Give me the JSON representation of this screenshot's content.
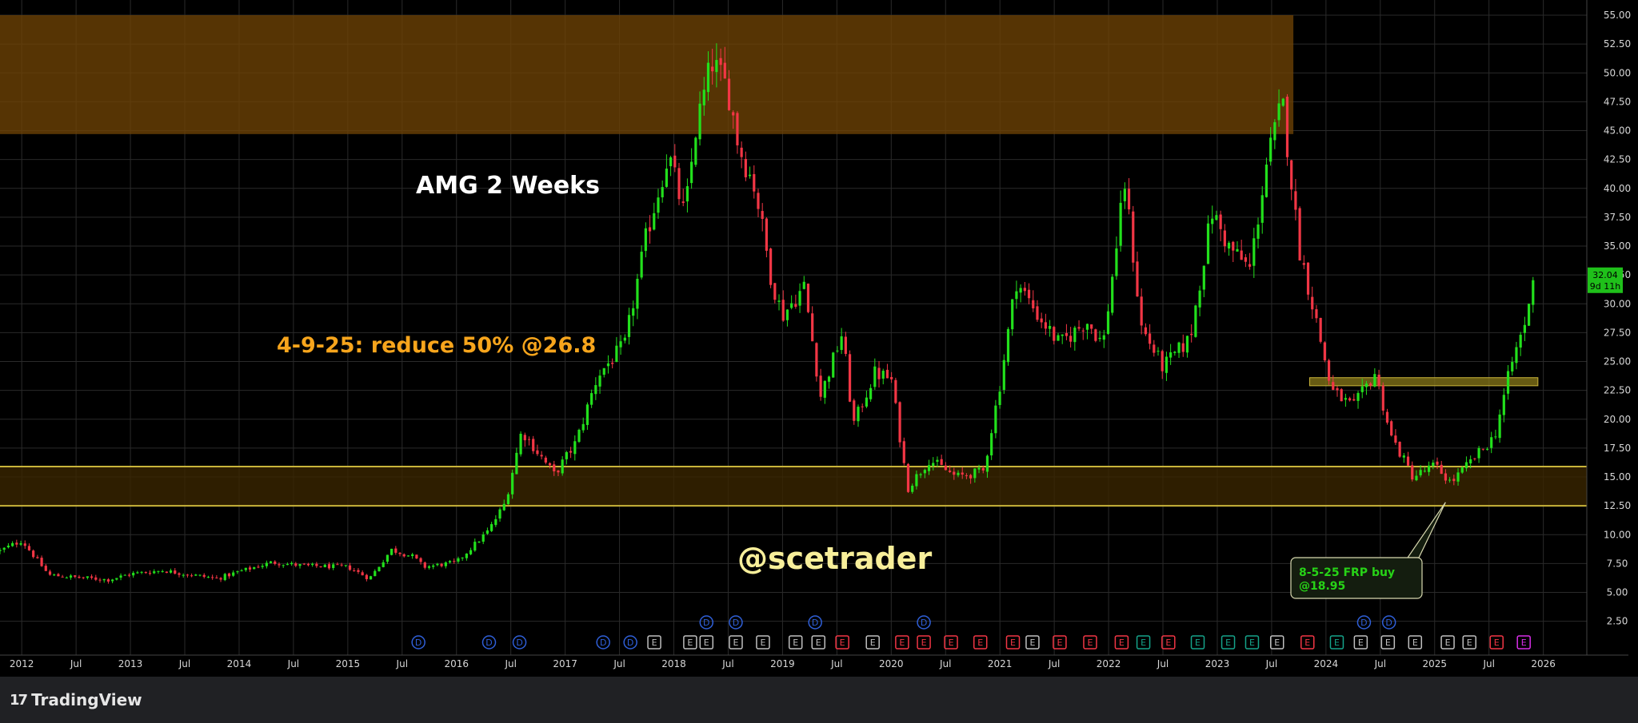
{
  "colors": {
    "background": "#000000",
    "grid": "#2a2a2a",
    "up": "#22e01c",
    "down": "#f23645",
    "resistance_zone": "#6e4305",
    "support_zone_fill": "#3a2500",
    "support_line": "#c9b43a",
    "mid_zone": "#8a7a1a",
    "title_text": "#ffffff",
    "note_text": "#f7a51c",
    "watermark_text": "#f8ef9a",
    "callout_text": "#27d317",
    "price_label_bg": "#1fc01a",
    "axis_text": "#d7d7d7",
    "dividend_badge": "#2f5fd8",
    "earnings_badge_neutral": "#bfbfbf",
    "earnings_badge_miss": "#f23645",
    "earnings_badge_beat": "#15a38a",
    "earnings_badge_upcoming": "#d82ee8"
  },
  "annotations": {
    "title": "AMG 2 Weeks",
    "note": "4-9-25: reduce 50% @26.8",
    "watermark": "@scetrader",
    "callout_line1": "8-5-25 FRP buy",
    "callout_line2": "@18.95"
  },
  "price_label": {
    "price": "32.04",
    "countdown": "9d 11h"
  },
  "branding": {
    "logo_mark": "17",
    "logo_text": "TradingView"
  },
  "chart_data": {
    "type": "candlestick",
    "symbol": "AMG",
    "interval": "2 Weeks",
    "xlim": [
      2011.8,
      2026.4
    ],
    "ylim": [
      0,
      56
    ],
    "y_ticks": [
      "2.50",
      "5.00",
      "7.50",
      "10.00",
      "12.50",
      "15.00",
      "17.50",
      "20.00",
      "22.50",
      "25.00",
      "27.50",
      "30.00",
      "32.50",
      "35.00",
      "37.50",
      "40.00",
      "42.50",
      "45.00",
      "47.50",
      "50.00",
      "52.50",
      "55.00"
    ],
    "x_ticks": [
      {
        "t": 2012.0,
        "label": "2012"
      },
      {
        "t": 2012.5,
        "label": "Jul"
      },
      {
        "t": 2013.0,
        "label": "2013"
      },
      {
        "t": 2013.5,
        "label": "Jul"
      },
      {
        "t": 2014.0,
        "label": "2014"
      },
      {
        "t": 2014.5,
        "label": "Jul"
      },
      {
        "t": 2015.0,
        "label": "2015"
      },
      {
        "t": 2015.5,
        "label": "Jul"
      },
      {
        "t": 2016.0,
        "label": "2016"
      },
      {
        "t": 2016.5,
        "label": "Jul"
      },
      {
        "t": 2017.0,
        "label": "2017"
      },
      {
        "t": 2017.5,
        "label": "Jul"
      },
      {
        "t": 2018.0,
        "label": "2018"
      },
      {
        "t": 2018.5,
        "label": "Jul"
      },
      {
        "t": 2019.0,
        "label": "2019"
      },
      {
        "t": 2019.5,
        "label": "Jul"
      },
      {
        "t": 2020.0,
        "label": "2020"
      },
      {
        "t": 2020.5,
        "label": "Jul"
      },
      {
        "t": 2021.0,
        "label": "2021"
      },
      {
        "t": 2021.5,
        "label": "Jul"
      },
      {
        "t": 2022.0,
        "label": "2022"
      },
      {
        "t": 2022.5,
        "label": "Jul"
      },
      {
        "t": 2023.0,
        "label": "2023"
      },
      {
        "t": 2023.5,
        "label": "Jul"
      },
      {
        "t": 2024.0,
        "label": "2024"
      },
      {
        "t": 2024.5,
        "label": "Jul"
      },
      {
        "t": 2025.0,
        "label": "2025"
      },
      {
        "t": 2025.5,
        "label": "Jul"
      },
      {
        "t": 2026.0,
        "label": "2026"
      }
    ],
    "price_path": [
      [
        2011.8,
        8.6
      ],
      [
        2012.0,
        9.5
      ],
      [
        2012.25,
        6.5
      ],
      [
        2012.5,
        6.3
      ],
      [
        2012.8,
        6.1
      ],
      [
        2013.0,
        6.6
      ],
      [
        2013.3,
        6.9
      ],
      [
        2013.5,
        6.6
      ],
      [
        2013.8,
        6.2
      ],
      [
        2014.0,
        6.8
      ],
      [
        2014.3,
        7.6
      ],
      [
        2014.6,
        7.3
      ],
      [
        2015.0,
        7.2
      ],
      [
        2015.2,
        6.2
      ],
      [
        2015.4,
        8.7
      ],
      [
        2015.6,
        8.1
      ],
      [
        2015.7,
        7.2
      ],
      [
        2016.0,
        7.6
      ],
      [
        2016.3,
        10.4
      ],
      [
        2016.45,
        12.8
      ],
      [
        2016.6,
        19.0
      ],
      [
        2016.9,
        15.2
      ],
      [
        2017.1,
        18.0
      ],
      [
        2017.3,
        23.8
      ],
      [
        2017.55,
        26.5
      ],
      [
        2017.75,
        36.0
      ],
      [
        2017.95,
        43.0
      ],
      [
        2018.1,
        37.5
      ],
      [
        2018.2,
        45.0
      ],
      [
        2018.35,
        51.0
      ],
      [
        2018.5,
        48.5
      ],
      [
        2018.6,
        43.5
      ],
      [
        2018.75,
        40.0
      ],
      [
        2018.9,
        32.0
      ],
      [
        2019.0,
        29.0
      ],
      [
        2019.2,
        31.5
      ],
      [
        2019.35,
        22.0
      ],
      [
        2019.55,
        27.5
      ],
      [
        2019.65,
        19.5
      ],
      [
        2019.85,
        24.0
      ],
      [
        2020.0,
        23.5
      ],
      [
        2020.15,
        14.0
      ],
      [
        2020.35,
        16.5
      ],
      [
        2020.6,
        15.0
      ],
      [
        2020.85,
        15.5
      ],
      [
        2021.0,
        23.0
      ],
      [
        2021.15,
        32.0
      ],
      [
        2021.35,
        29.0
      ],
      [
        2021.55,
        26.5
      ],
      [
        2021.8,
        28.5
      ],
      [
        2021.95,
        26.5
      ],
      [
        2022.15,
        40.5
      ],
      [
        2022.3,
        28.0
      ],
      [
        2022.5,
        24.5
      ],
      [
        2022.75,
        27.0
      ],
      [
        2022.95,
        38.0
      ],
      [
        2023.1,
        35.0
      ],
      [
        2023.3,
        33.0
      ],
      [
        2023.45,
        42.0
      ],
      [
        2023.6,
        47.5
      ],
      [
        2023.75,
        35.0
      ],
      [
        2023.9,
        29.0
      ],
      [
        2024.05,
        22.5
      ],
      [
        2024.25,
        21.0
      ],
      [
        2024.45,
        24.0
      ],
      [
        2024.6,
        18.5
      ],
      [
        2024.8,
        15.0
      ],
      [
        2025.0,
        16.0
      ],
      [
        2025.15,
        14.5
      ],
      [
        2025.3,
        16.0
      ],
      [
        2025.45,
        17.5
      ],
      [
        2025.55,
        18.5
      ],
      [
        2025.7,
        24.5
      ],
      [
        2025.85,
        29.0
      ],
      [
        2025.93,
        32.04
      ]
    ],
    "last_price": 32.04,
    "zones": [
      {
        "name": "resistance",
        "from_t": 2011.8,
        "to_t": 2023.7,
        "low": 44.7,
        "high": 55.0
      },
      {
        "name": "support",
        "from_t": 2011.8,
        "to_t": 2026.4,
        "low": 12.5,
        "high": 15.9
      },
      {
        "name": "pivot",
        "from_t": 2023.85,
        "to_t": 2025.95,
        "low": 22.9,
        "high": 23.6
      }
    ],
    "callout_target": {
      "t": 2025.1,
      "price": 12.8
    },
    "event_badges": [
      {
        "t": 2015.65,
        "kind": "D",
        "row": 1
      },
      {
        "t": 2016.3,
        "kind": "D",
        "row": 1
      },
      {
        "t": 2016.58,
        "kind": "D",
        "row": 1
      },
      {
        "t": 2017.35,
        "kind": "D",
        "row": 1
      },
      {
        "t": 2017.6,
        "kind": "D",
        "row": 1
      },
      {
        "t": 2017.82,
        "kind": "E",
        "row": 1
      },
      {
        "t": 2018.15,
        "kind": "E",
        "row": 1
      },
      {
        "t": 2018.3,
        "kind": "E",
        "row": 1
      },
      {
        "t": 2018.57,
        "kind": "E",
        "row": 1
      },
      {
        "t": 2018.82,
        "kind": "E",
        "row": 1
      },
      {
        "t": 2019.12,
        "kind": "E",
        "row": 1
      },
      {
        "t": 2019.33,
        "kind": "E",
        "row": 1
      },
      {
        "t": 2019.55,
        "kind": "Em",
        "row": 1
      },
      {
        "t": 2019.83,
        "kind": "E",
        "row": 1
      },
      {
        "t": 2020.1,
        "kind": "Em",
        "row": 1
      },
      {
        "t": 2020.3,
        "kind": "Em",
        "row": 1
      },
      {
        "t": 2020.55,
        "kind": "Em",
        "row": 1
      },
      {
        "t": 2020.82,
        "kind": "Em",
        "row": 1
      },
      {
        "t": 2021.12,
        "kind": "Em",
        "row": 1
      },
      {
        "t": 2021.3,
        "kind": "E",
        "row": 1
      },
      {
        "t": 2021.55,
        "kind": "Em",
        "row": 1
      },
      {
        "t": 2021.83,
        "kind": "Em",
        "row": 1
      },
      {
        "t": 2022.12,
        "kind": "Em",
        "row": 1
      },
      {
        "t": 2022.32,
        "kind": "Eb",
        "row": 1
      },
      {
        "t": 2022.55,
        "kind": "Em",
        "row": 1
      },
      {
        "t": 2022.82,
        "kind": "Eb",
        "row": 1
      },
      {
        "t": 2023.1,
        "kind": "Eb",
        "row": 1
      },
      {
        "t": 2023.32,
        "kind": "Eb",
        "row": 1
      },
      {
        "t": 2023.55,
        "kind": "E",
        "row": 1
      },
      {
        "t": 2023.83,
        "kind": "Em",
        "row": 1
      },
      {
        "t": 2024.1,
        "kind": "Eb",
        "row": 1
      },
      {
        "t": 2024.32,
        "kind": "E",
        "row": 1
      },
      {
        "t": 2024.57,
        "kind": "E",
        "row": 1
      },
      {
        "t": 2024.82,
        "kind": "E",
        "row": 1
      },
      {
        "t": 2025.12,
        "kind": "E",
        "row": 1
      },
      {
        "t": 2025.32,
        "kind": "E",
        "row": 1
      },
      {
        "t": 2025.57,
        "kind": "Em",
        "row": 1
      },
      {
        "t": 2025.82,
        "kind": "Eu",
        "row": 1
      },
      {
        "t": 2018.3,
        "kind": "D",
        "row": 2
      },
      {
        "t": 2018.57,
        "kind": "D",
        "row": 2
      },
      {
        "t": 2019.3,
        "kind": "D",
        "row": 2
      },
      {
        "t": 2020.3,
        "kind": "D",
        "row": 2
      },
      {
        "t": 2024.35,
        "kind": "D",
        "row": 2
      },
      {
        "t": 2024.58,
        "kind": "D",
        "row": 2
      }
    ]
  }
}
